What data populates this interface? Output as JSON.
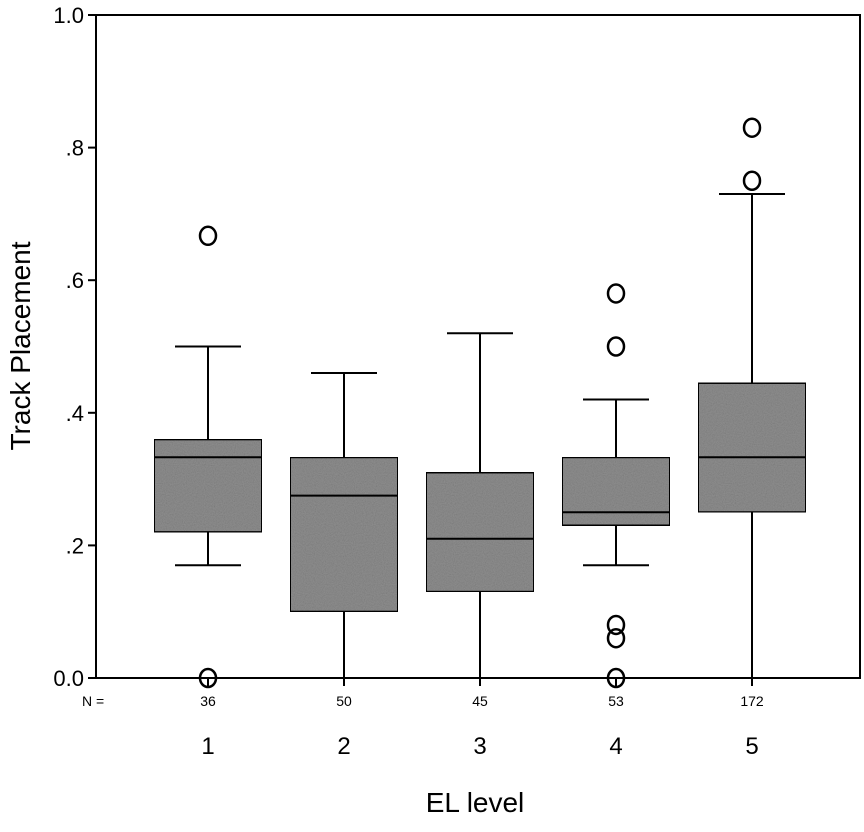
{
  "chart_data": {
    "type": "box",
    "title": "",
    "xlabel": "EL level",
    "ylabel": "Track Placement",
    "ylim": [
      0.0,
      1.0
    ],
    "yticks": [
      {
        "value": 0.0,
        "label": "0.0"
      },
      {
        "value": 0.2,
        "label": ".2"
      },
      {
        "value": 0.4,
        "label": ".4"
      },
      {
        "value": 0.6,
        "label": ".6"
      },
      {
        "value": 0.8,
        "label": ".8"
      },
      {
        "value": 1.0,
        "label": "1.0"
      }
    ],
    "n_prefix": "N =",
    "grid": false,
    "legend": "none",
    "box_color": "#8f8f8f",
    "boxes": [
      {
        "category": "1",
        "n": "36",
        "whisker_low": 0.17,
        "q1": 0.22,
        "median": 0.333,
        "q3": 0.36,
        "whisker_high": 0.5,
        "outliers": [
          0.667,
          0.0
        ]
      },
      {
        "category": "2",
        "n": "50",
        "whisker_low": 0.0,
        "q1": 0.1,
        "median": 0.275,
        "q3": 0.333,
        "whisker_high": 0.46,
        "outliers": []
      },
      {
        "category": "3",
        "n": "45",
        "whisker_low": 0.0,
        "q1": 0.13,
        "median": 0.21,
        "q3": 0.31,
        "whisker_high": 0.52,
        "outliers": []
      },
      {
        "category": "4",
        "n": "53",
        "whisker_low": 0.17,
        "q1": 0.23,
        "median": 0.25,
        "q3": 0.333,
        "whisker_high": 0.42,
        "outliers": [
          0.58,
          0.5,
          0.08,
          0.06,
          0.0
        ]
      },
      {
        "category": "5",
        "n": "172",
        "whisker_low": 0.0,
        "q1": 0.25,
        "median": 0.333,
        "q3": 0.445,
        "whisker_high": 0.73,
        "outliers": [
          0.83,
          0.75
        ]
      }
    ]
  }
}
